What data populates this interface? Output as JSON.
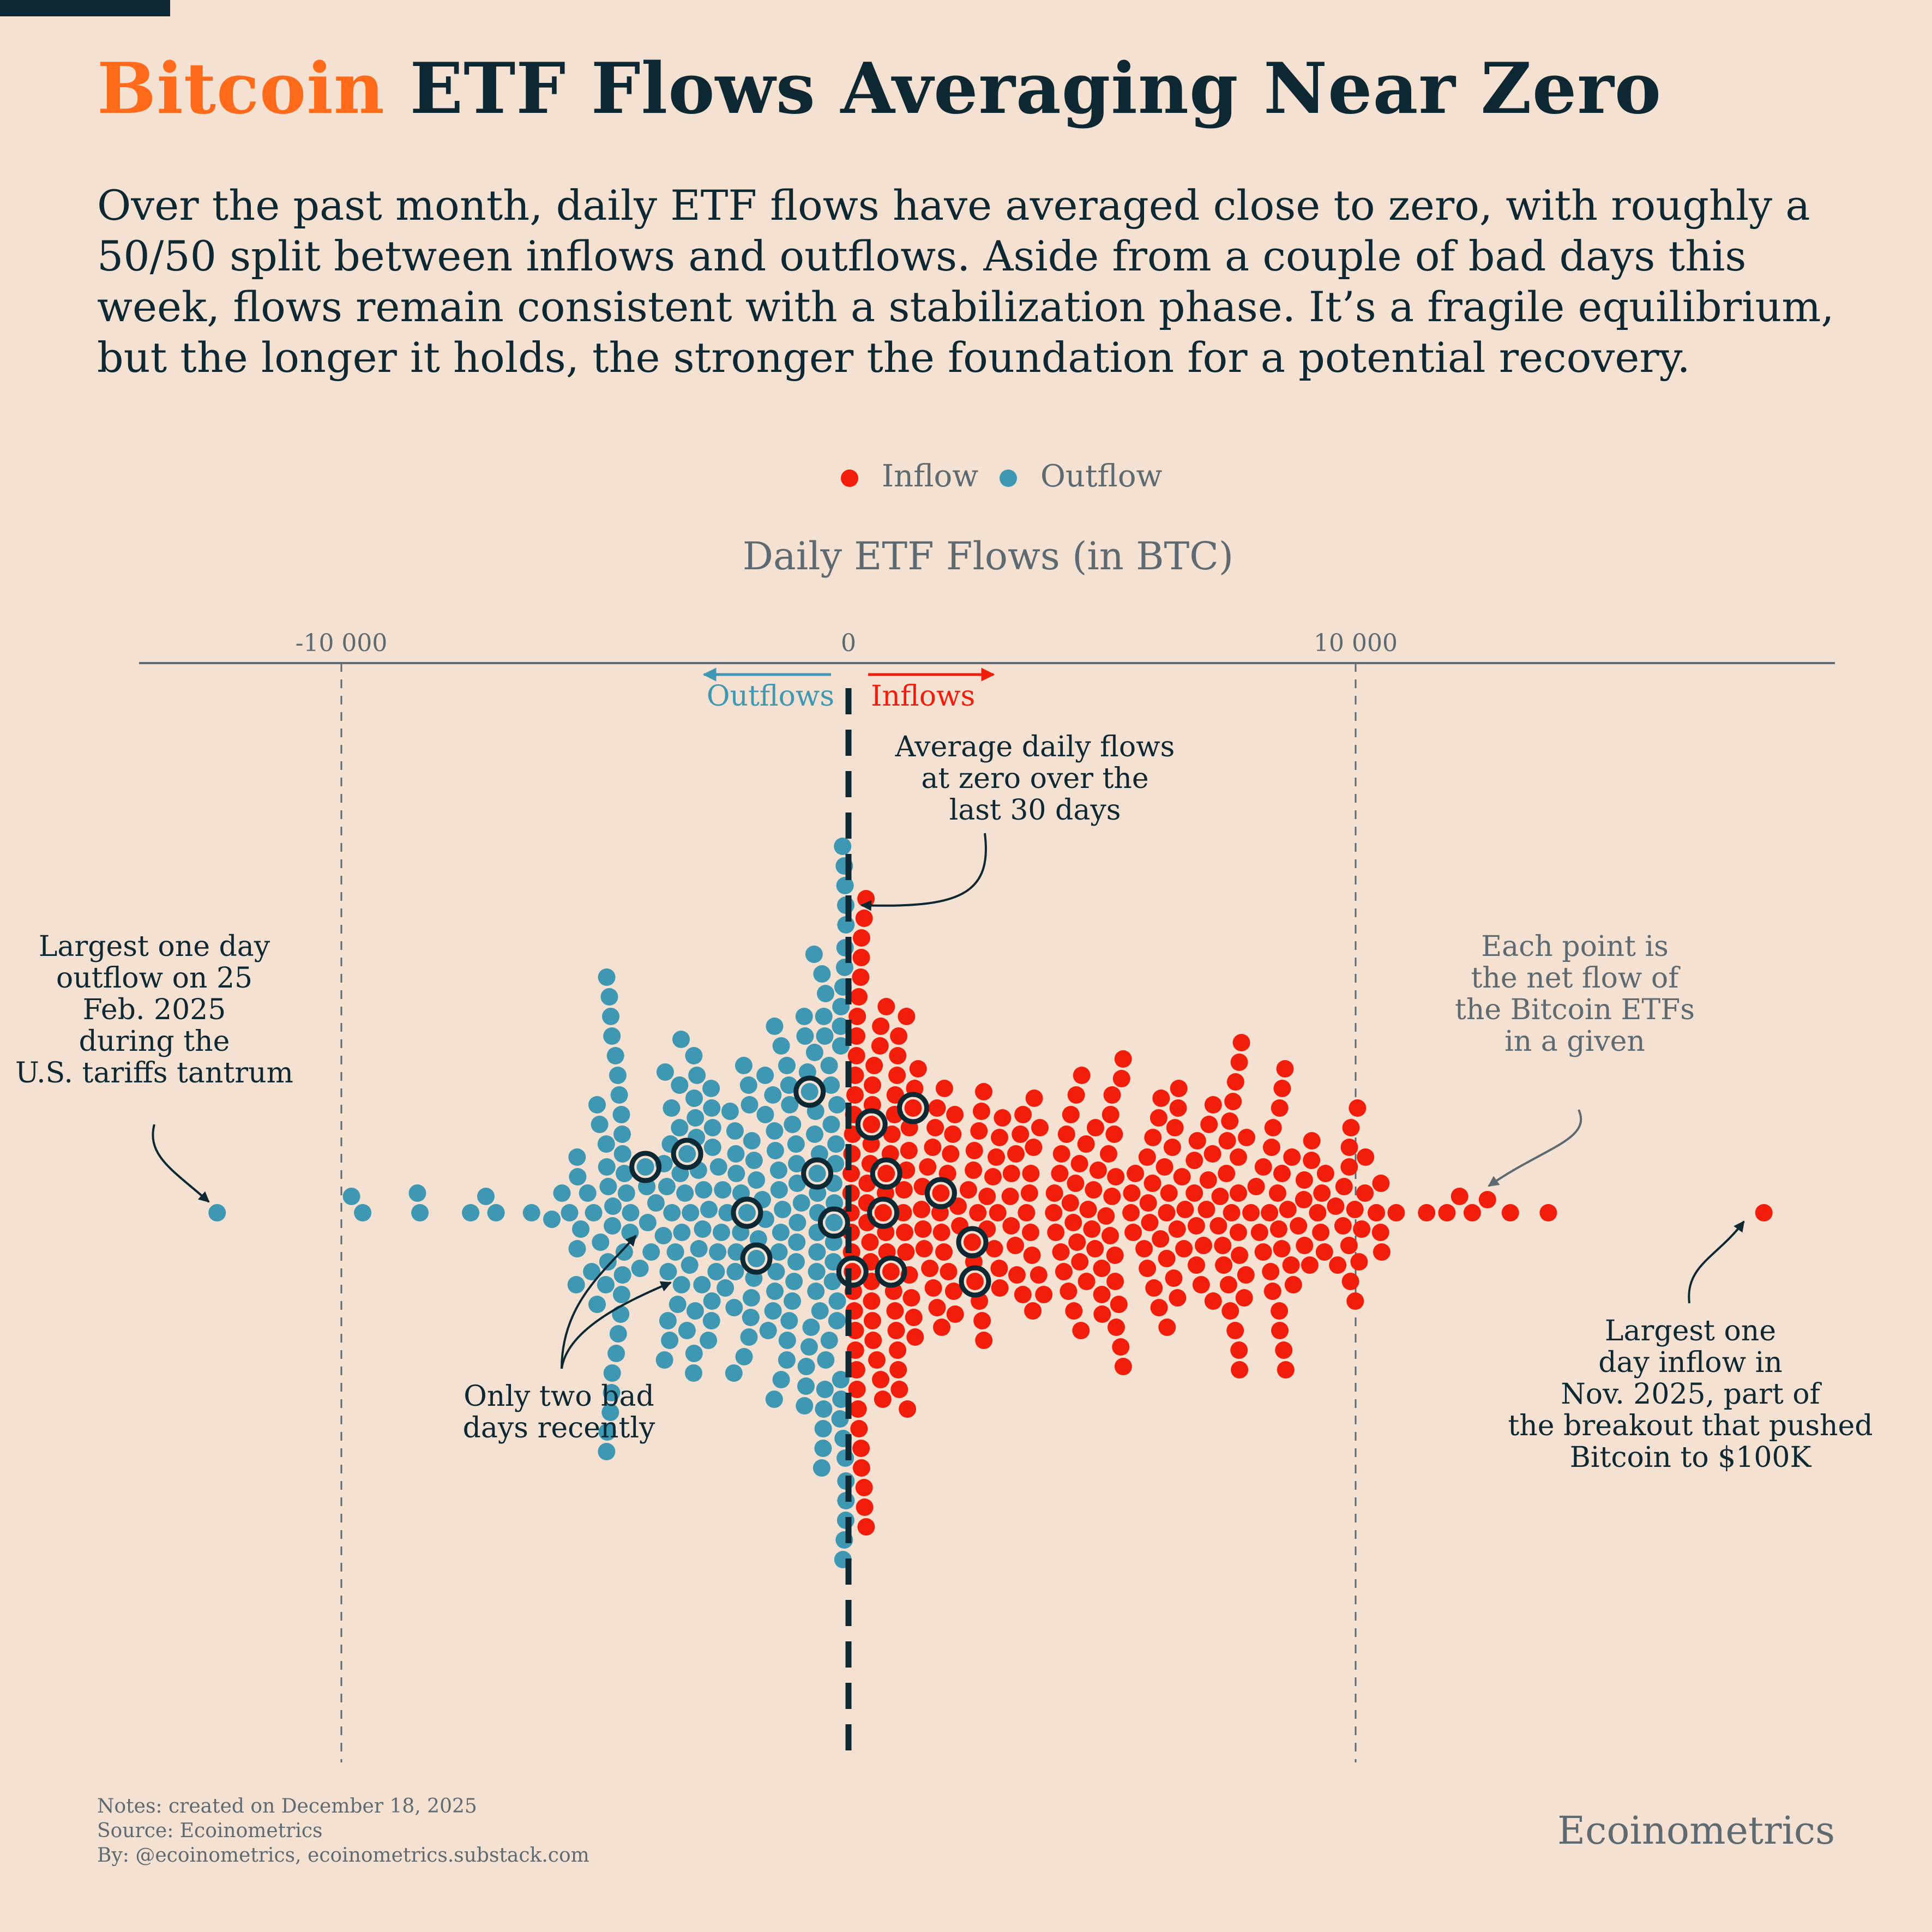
{
  "header": {
    "title_accent": "Bitcoin",
    "title_rest": " ETF Flows Averaging Near Zero",
    "subtitle": "Over the past month, daily ETF flows have averaged close to zero, with roughly a 50/50 split between inflows and outflows. Aside from a couple of bad days this week, flows remain consistent with a stabilization phase. It’s a fragile equilibrium, but the longer it holds, the stronger the foundation for a potential recovery."
  },
  "colors": {
    "background": "#f4e1d2",
    "inflow": "#f21e0b",
    "outflow": "#3e98b3",
    "text": "#0d2833",
    "accent": "#ff6b1a",
    "muted": "#5d6a72"
  },
  "chart_data": {
    "type": "scatter",
    "subtype": "beeswarm",
    "title": "Daily ETF Flows (in BTC)",
    "x_axis": {
      "range": [
        -14000,
        19500
      ],
      "ticks": [
        -10000,
        0,
        10000
      ],
      "tick_labels": [
        "-10 000",
        "0",
        "10 000"
      ],
      "grid": "dashed vertical lines"
    },
    "legend": {
      "placement": "top-center",
      "items": [
        {
          "label": "Inflow",
          "color": "#f21e0b"
        },
        {
          "label": "Outflow",
          "color": "#3e98b3"
        }
      ]
    },
    "direction_labels": {
      "outflows": "Outflows",
      "inflows": "Inflows"
    },
    "mean_line": {
      "x": 0
    },
    "extremes": {
      "min": -12450,
      "max": 18050
    },
    "outflow_tail": [
      -9800,
      -9580,
      -8500,
      -8450,
      -7450,
      -7150,
      -6950,
      -6250,
      -5850,
      -5650,
      -5500
    ],
    "inflow_tail": [
      10800,
      11400,
      11800,
      12050,
      12300,
      12600,
      13050,
      13800
    ],
    "outflow_core": {
      "count": 230,
      "min": -5400,
      "max": -50
    },
    "inflow_core": {
      "count": 330,
      "min": 50,
      "max": 10600
    },
    "recent_days": [
      -4100,
      -3200,
      -2100,
      -1750,
      -850,
      -700,
      -150,
      150,
      300,
      600,
      700,
      800,
      1450,
      1750,
      2450,
      2750
    ],
    "annotations": {
      "mean": "Average daily flows at zero over the last 30 days",
      "largest_outflow": "Largest one day outflow on 25 Feb. 2025 during the U.S. tariffs tantrum",
      "each_point": "Each point is the net flow of the Bitcoin ETFs in a given day",
      "bad_days": "Only two bad days recently",
      "largest_inflow": "Largest one day inflow in Nov. 2025, part of the breakout that pushed Bitcoin to $100K"
    }
  },
  "footer": {
    "notes": "Notes: created on December 18, 2025",
    "source": "Source: Ecoinometrics",
    "by": "By: @ecoinometrics, ecoinometrics.substack.com",
    "brand": "Ecoinometrics"
  }
}
